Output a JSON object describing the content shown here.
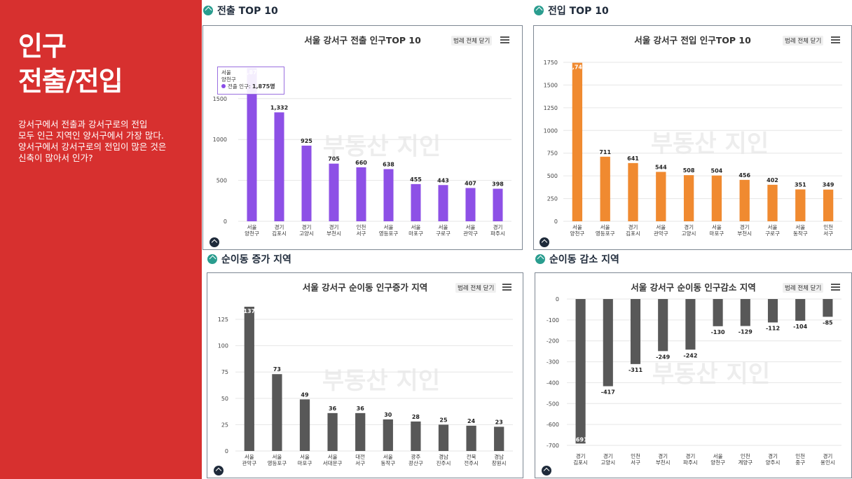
{
  "left": {
    "title_line1": "인구",
    "title_line2": "전출/전입",
    "desc": [
      "강서구에서 전출과 강서구로의 전입",
      "모두 인근 지역인 양서구에서 가장 많다.",
      "양서구에서 강서구로의 전입이 많은 것은",
      "신축이 많아서 인가?"
    ]
  },
  "sections": {
    "outflow": "전출 TOP 10",
    "inflow": "전입 TOP 10",
    "net_increase": "순이동 증가 지역",
    "net_decrease": "순이동 감소 지역"
  },
  "ui": {
    "legend_button": "범례 전체 닫기"
  },
  "tooltip": {
    "region": "서울",
    "district": "양천구",
    "label": "전출 인구: ",
    "value": "1,875명"
  },
  "watermark": "부동산 지인",
  "colors": {
    "left_panel": "#d7302f",
    "outflow": "#8d50e6",
    "inflow": "#f08a30",
    "net": "#585858",
    "section_icon": "#2a9d8f"
  },
  "chart_data": [
    {
      "type": "bar",
      "title": "서울 강서구 전출 인구TOP 10",
      "categories": [
        [
          "서울",
          "양천구"
        ],
        [
          "경기",
          "김포시"
        ],
        [
          "경기",
          "고양시"
        ],
        [
          "경기",
          "부천시"
        ],
        [
          "인천",
          "서구"
        ],
        [
          "서울",
          "영등포구"
        ],
        [
          "서울",
          "마포구"
        ],
        [
          "서울",
          "구로구"
        ],
        [
          "서울",
          "관악구"
        ],
        [
          "경기",
          "파주시"
        ]
      ],
      "values": [
        1875,
        1332,
        925,
        705,
        660,
        638,
        455,
        443,
        407,
        398
      ],
      "ylim": [
        0,
        1875
      ],
      "yticks": [
        0,
        500,
        1000,
        1500
      ],
      "color": "#8d50e6",
      "grid": true
    },
    {
      "type": "bar",
      "title": "서울 강서구 전입 인구TOP 10",
      "categories": [
        [
          "서울",
          "양천구"
        ],
        [
          "서울",
          "영등포구"
        ],
        [
          "경기",
          "김포시"
        ],
        [
          "서울",
          "관악구"
        ],
        [
          "경기",
          "고양시"
        ],
        [
          "서울",
          "마포구"
        ],
        [
          "경기",
          "부천시"
        ],
        [
          "서울",
          "구로구"
        ],
        [
          "서울",
          "동작구"
        ],
        [
          "인천",
          "서구"
        ]
      ],
      "values": [
        1745,
        711,
        641,
        544,
        508,
        504,
        456,
        402,
        351,
        349
      ],
      "ylim": [
        0,
        1750
      ],
      "yticks": [
        0,
        250,
        500,
        750,
        1000,
        1250,
        1500,
        1750
      ],
      "color": "#f08a30",
      "grid": true
    },
    {
      "type": "bar",
      "title": "서울 강서구 순이동 인구증가 지역",
      "categories": [
        [
          "서울",
          "관악구"
        ],
        [
          "서울",
          "영등포구"
        ],
        [
          "서울",
          "마포구"
        ],
        [
          "서울",
          "서대문구"
        ],
        [
          "대전",
          "서구"
        ],
        [
          "서울",
          "동작구"
        ],
        [
          "광주",
          "광산구"
        ],
        [
          "경남",
          "진주시"
        ],
        [
          "전북",
          "전주시"
        ],
        [
          "경남",
          "창원시"
        ]
      ],
      "values": [
        137,
        73,
        49,
        36,
        36,
        30,
        28,
        25,
        24,
        23
      ],
      "ylim": [
        0,
        137
      ],
      "yticks": [
        0,
        25,
        50,
        75,
        100,
        125
      ],
      "color": "#585858",
      "grid": true
    },
    {
      "type": "bar",
      "title": "서울 강서구 순이동 인구감소 지역",
      "categories": [
        [
          "경기",
          "김포시"
        ],
        [
          "경기",
          "고양시"
        ],
        [
          "인천",
          "서구"
        ],
        [
          "경기",
          "부천시"
        ],
        [
          "경기",
          "파주시"
        ],
        [
          "서울",
          "양천구"
        ],
        [
          "인천",
          "계양구"
        ],
        [
          "경기",
          "양주시"
        ],
        [
          "인천",
          "중구"
        ],
        [
          "경기",
          "용인시"
        ]
      ],
      "values": [
        -691,
        -417,
        -311,
        -249,
        -242,
        -130,
        -129,
        -112,
        -104,
        -85
      ],
      "ylim": [
        -700,
        0
      ],
      "yticks": [
        0,
        -100,
        -200,
        -300,
        -400,
        -500,
        -600,
        -700
      ],
      "color": "#585858",
      "grid": true
    }
  ]
}
